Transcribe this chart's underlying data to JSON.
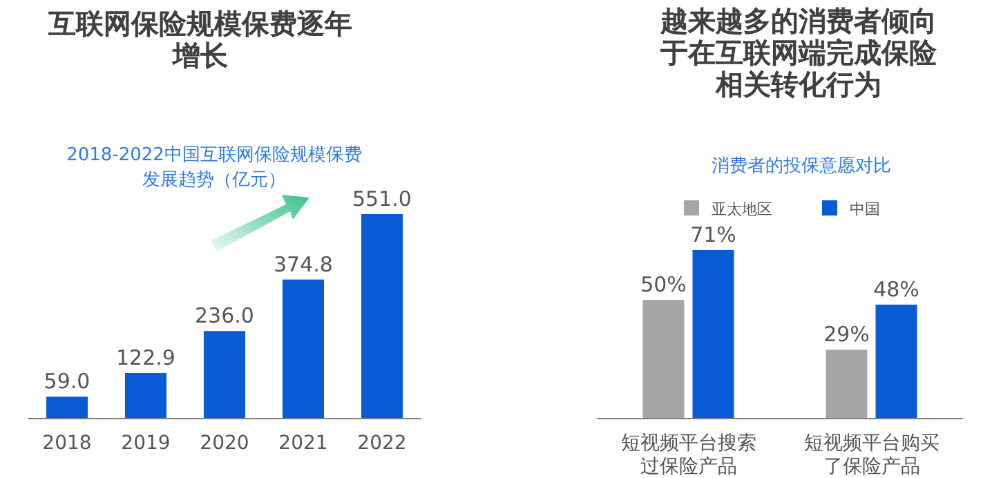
{
  "chart_data": [
    {
      "type": "bar",
      "title": "互联网保险规模保费逐年增长",
      "subtitle": "2018-2022中国互联网保险规模保费发展趋势（亿元）",
      "categories": [
        "2018",
        "2019",
        "2020",
        "2021",
        "2022"
      ],
      "series": [
        {
          "color": "#0a5bd6",
          "values": [
            59.0,
            122.9,
            236.0,
            374.8,
            551.0
          ],
          "value_labels": [
            "59.0",
            "122.9",
            "236.0",
            "374.8",
            "551.0"
          ]
        }
      ],
      "data_labels": true,
      "legend": false,
      "tick_labels": "x"
    },
    {
      "type": "bar",
      "title": "越来越多的消费者倾向于在互联网端完成保险相关转化行为",
      "subtitle": "消费者的投保意愿对比",
      "categories": [
        "短视频平台搜索过保险产品",
        "短视频平台购买了保险产品"
      ],
      "series": [
        {
          "name": "亚太地区",
          "color": "#a6a6a6",
          "values": [
            50,
            29
          ],
          "value_labels": [
            "50%",
            "29%"
          ]
        },
        {
          "name": "中国",
          "color": "#0a5bd6",
          "values": [
            71,
            48
          ],
          "value_labels": [
            "71%",
            "48%"
          ]
        }
      ],
      "data_labels": true,
      "legend": "top",
      "tick_labels": "x"
    }
  ]
}
